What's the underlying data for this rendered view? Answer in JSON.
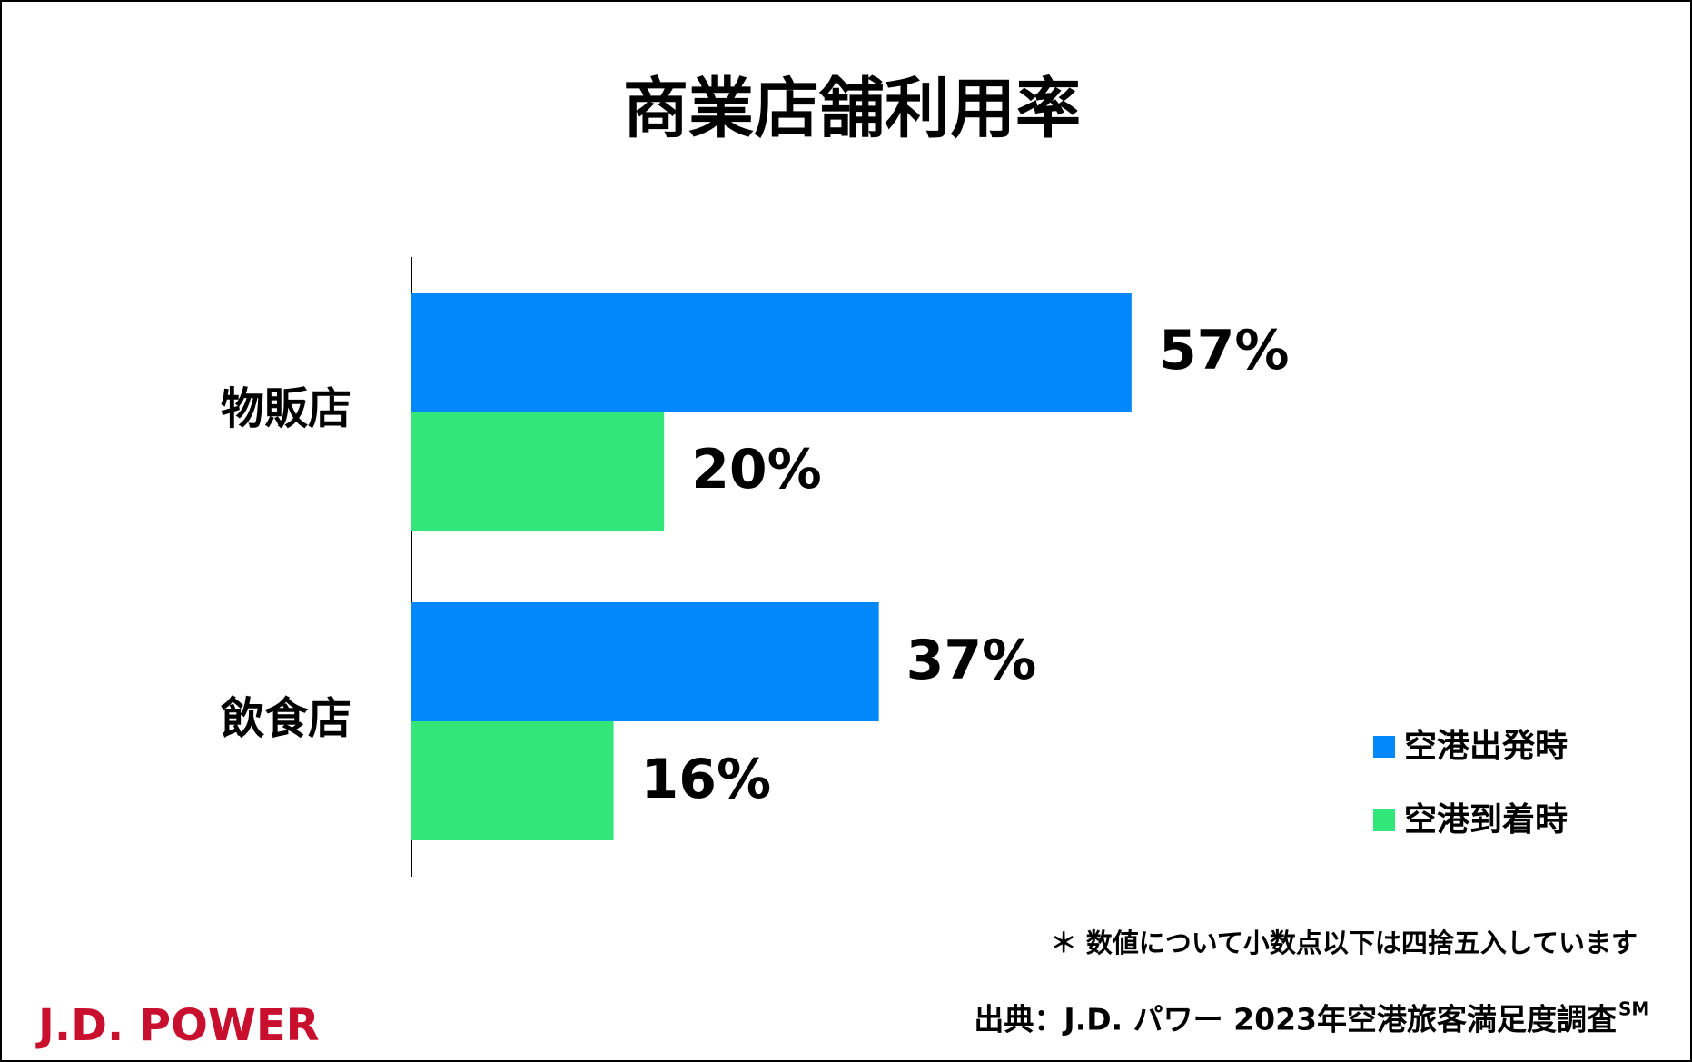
{
  "chart_data": {
    "type": "hbar",
    "title": "商業店舗利用率",
    "categories": [
      "物販店",
      "飲食店"
    ],
    "series": [
      {
        "name": "空港出発時",
        "color": "#0388fc",
        "values": [
          57,
          37
        ],
        "value_labels": [
          "57%",
          "37%"
        ]
      },
      {
        "name": "空港到着時",
        "color": "#33e67a",
        "values": [
          20,
          16
        ],
        "value_labels": [
          "20%",
          "16%"
        ]
      }
    ],
    "xlim": [
      0,
      100
    ],
    "legend": "right",
    "footnote": "＊ 数値について小数点以下は四捨五入しています",
    "source": "出典：J.D. パワー 2023年空港旅客満足度調査",
    "source_mark": "SM",
    "logo": "J.D. POWER"
  }
}
